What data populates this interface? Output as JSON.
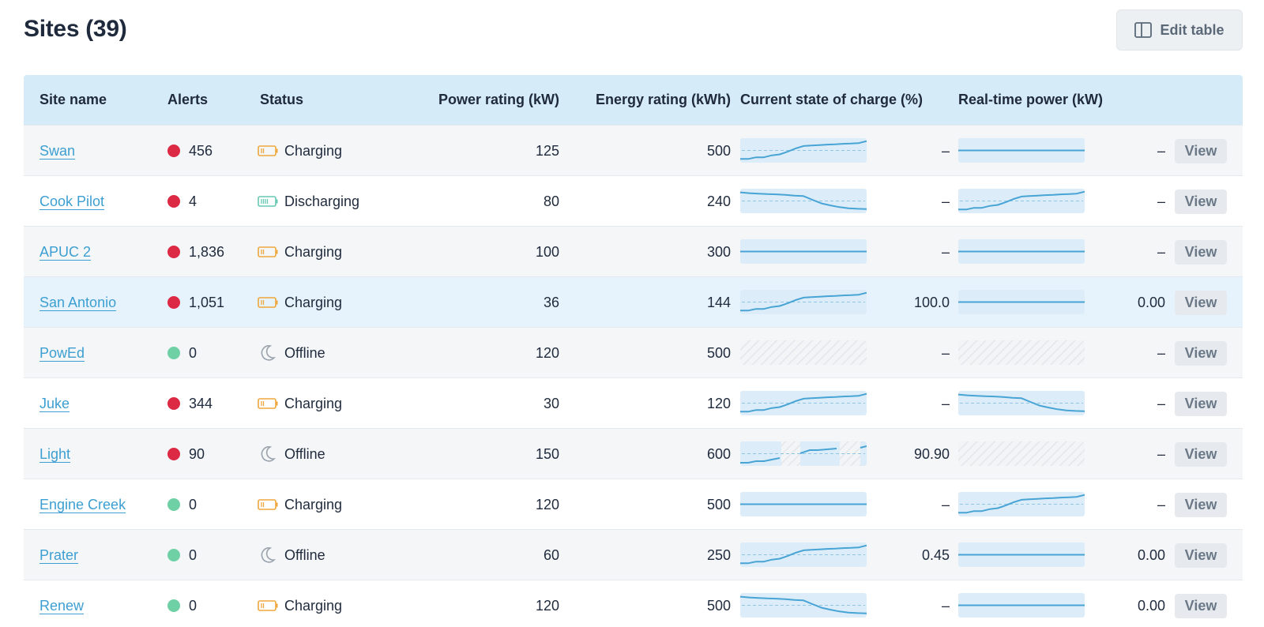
{
  "header": {
    "title": "Sites (39)",
    "edit_table_label": "Edit table"
  },
  "columns": {
    "site_name": "Site name",
    "alerts": "Alerts",
    "status": "Status",
    "power_rating": "Power rating (kW)",
    "energy_rating": "Energy rating (kWh)",
    "state_of_charge": "Current state of charge (%)",
    "real_time_power": "Real-time power (kW)"
  },
  "colors": {
    "alert_red": "#dc2a45",
    "alert_green": "#6fd0a6",
    "charging_orange": "#efa73d",
    "discharging_teal": "#67c9b3",
    "offline_gray": "#9aa3ad",
    "link_blue": "#3d9fd1",
    "spark_line": "#48a4d4",
    "spark_bg": "#dcedf9"
  },
  "view_label": "View",
  "rows": [
    {
      "site": "Swan",
      "alerts": "456",
      "alert_color": "red",
      "status": "Charging",
      "status_icon": "battery-charging-icon",
      "power": "125",
      "energy": "500",
      "soc_spark": "rising",
      "soc_value": "–",
      "rtp_spark": "flat",
      "rtp_value": "–"
    },
    {
      "site": "Cook Pilot",
      "alerts": "4",
      "alert_color": "red",
      "status": "Discharging",
      "status_icon": "battery-discharging-icon",
      "power": "80",
      "energy": "240",
      "soc_spark": "falling",
      "soc_value": "–",
      "rtp_spark": "rising",
      "rtp_value": "–"
    },
    {
      "site": "APUC 2",
      "alerts": "1,836",
      "alert_color": "red",
      "status": "Charging",
      "status_icon": "battery-charging-icon",
      "power": "100",
      "energy": "300",
      "soc_spark": "flat",
      "soc_value": "–",
      "rtp_spark": "flat",
      "rtp_value": "–"
    },
    {
      "site": "San Antonio",
      "alerts": "1,051",
      "alert_color": "red",
      "status": "Charging",
      "status_icon": "battery-charging-icon",
      "power": "36",
      "energy": "144",
      "soc_spark": "rising",
      "soc_value": "100.0",
      "rtp_spark": "flat",
      "rtp_value": "0.00"
    },
    {
      "site": "PowEd",
      "alerts": "0",
      "alert_color": "green",
      "status": "Offline",
      "status_icon": "moon-icon",
      "power": "120",
      "energy": "500",
      "soc_spark": "offline",
      "soc_value": "–",
      "rtp_spark": "offline",
      "rtp_value": "–"
    },
    {
      "site": "Juke",
      "alerts": "344",
      "alert_color": "red",
      "status": "Charging",
      "status_icon": "battery-charging-icon",
      "power": "30",
      "energy": "120",
      "soc_spark": "rising",
      "soc_value": "–",
      "rtp_spark": "falling",
      "rtp_value": "–"
    },
    {
      "site": "Light",
      "alerts": "90",
      "alert_color": "red",
      "status": "Offline",
      "status_icon": "moon-icon",
      "power": "150",
      "energy": "600",
      "soc_spark": "gapped",
      "soc_value": "90.90",
      "rtp_spark": "offline",
      "rtp_value": "–"
    },
    {
      "site": "Engine Creek",
      "alerts": "0",
      "alert_color": "green",
      "status": "Charging",
      "status_icon": "battery-charging-icon",
      "power": "120",
      "energy": "500",
      "soc_spark": "flat",
      "soc_value": "–",
      "rtp_spark": "rising",
      "rtp_value": "–"
    },
    {
      "site": "Prater",
      "alerts": "0",
      "alert_color": "green",
      "status": "Offline",
      "status_icon": "moon-icon",
      "power": "60",
      "energy": "250",
      "soc_spark": "rising",
      "soc_value": "0.45",
      "rtp_spark": "flat",
      "rtp_value": "0.00"
    },
    {
      "site": "Renew",
      "alerts": "0",
      "alert_color": "green",
      "status": "Charging",
      "status_icon": "battery-charging-icon",
      "power": "120",
      "energy": "500",
      "soc_spark": "falling",
      "soc_value": "–",
      "rtp_spark": "flat",
      "rtp_value": "0.00"
    }
  ]
}
